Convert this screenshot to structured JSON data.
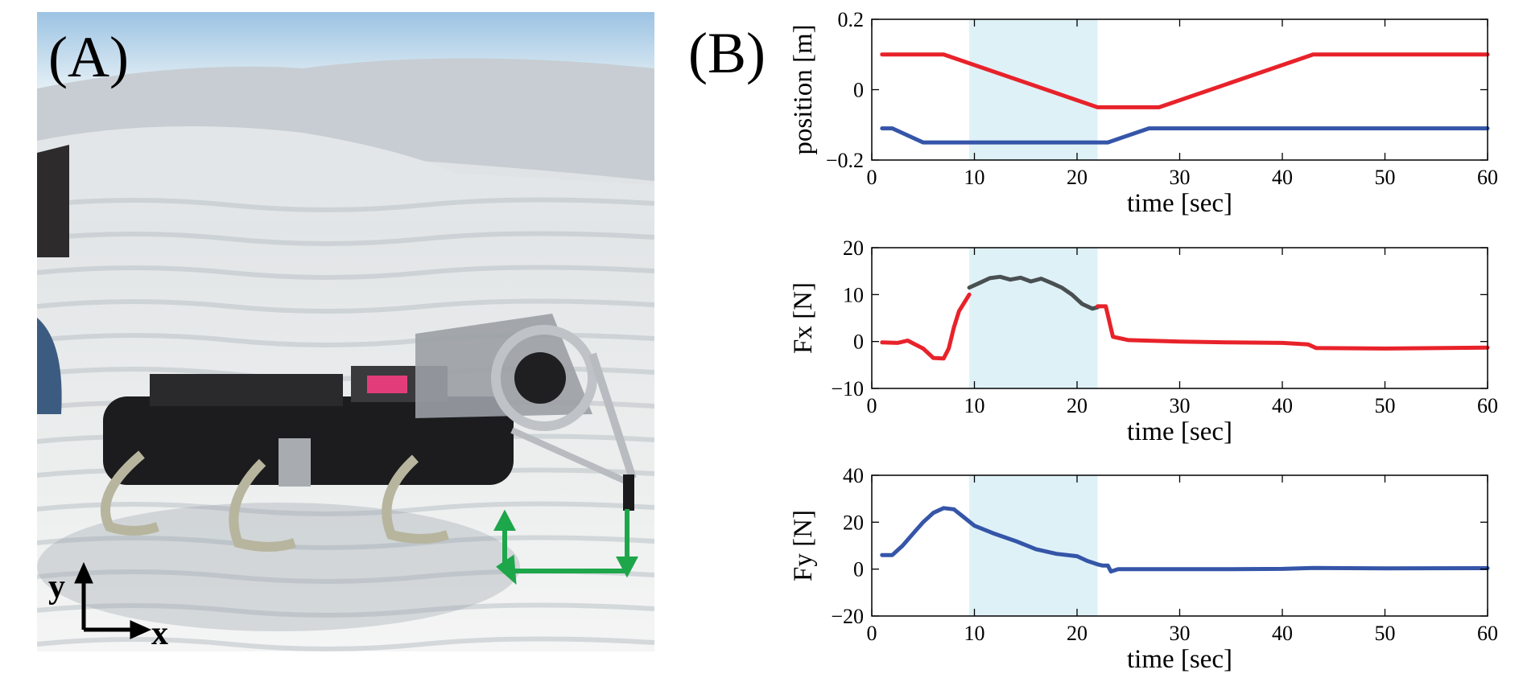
{
  "figure": {
    "panel_a_label": "(A)",
    "panel_b_label": "(B)",
    "photo_axis_x": "x",
    "photo_axis_y": "y"
  },
  "colors": {
    "red": "#e8222a",
    "blue": "#3555a8",
    "gray": "#4a4f52",
    "orange": "#d9603b",
    "shade": "#def1f7",
    "green_arrows": "#1ea64a"
  },
  "shaded_interval": [
    9.5,
    22
  ],
  "chart_data": [
    {
      "type": "line",
      "xlabel": "time [sec]",
      "ylabel": "position [m]",
      "xlim": [
        0,
        60
      ],
      "ylim": [
        -0.2,
        0.2
      ],
      "xticks": [
        "0",
        "10",
        "20",
        "30",
        "40",
        "50",
        "60"
      ],
      "yticks": [
        "−0.2",
        "0",
        "0.2"
      ],
      "series": [
        {
          "color": "red",
          "x": [
            1,
            7,
            22,
            28,
            43,
            60
          ],
          "y": [
            0.1,
            0.1,
            -0.05,
            -0.05,
            0.1,
            0.1
          ]
        },
        {
          "color": "blue",
          "x": [
            1,
            2,
            5,
            22,
            23,
            27,
            60
          ],
          "y": [
            -0.11,
            -0.11,
            -0.15,
            -0.15,
            -0.15,
            -0.11,
            -0.11
          ]
        }
      ]
    },
    {
      "type": "line",
      "xlabel": "time [sec]",
      "ylabel": "Fx [N]",
      "xlim": [
        0,
        60
      ],
      "ylim": [
        -10,
        20
      ],
      "xticks": [
        "0",
        "10",
        "20",
        "30",
        "40",
        "50",
        "60"
      ],
      "yticks": [
        "−10",
        "0",
        "10",
        "20"
      ],
      "series": [
        {
          "color": "red",
          "x": [
            1,
            2.5,
            3.5,
            5,
            6,
            7,
            7.5,
            8,
            8.5,
            9.5
          ],
          "y": [
            -0.2,
            -0.3,
            0.2,
            -1.5,
            -3.5,
            -3.6,
            -1.5,
            3,
            6.5,
            10
          ]
        },
        {
          "color": "gray",
          "x": [
            9.5,
            10.5,
            11.5,
            12.5,
            13.5,
            14.5,
            15.5,
            16.5,
            17.5,
            18.5,
            19.5,
            20.5,
            21.5,
            22
          ],
          "y": [
            11.5,
            12.5,
            13.5,
            13.8,
            13.2,
            13.6,
            12.8,
            13.4,
            12.5,
            11.5,
            10,
            8,
            7,
            7.3
          ]
        },
        {
          "color": "red",
          "x": [
            22,
            22.8,
            23.5,
            25,
            30,
            35,
            40,
            42.5,
            43.3,
            50,
            60
          ],
          "y": [
            7.5,
            7.5,
            1,
            0.3,
            0,
            -0.2,
            -0.3,
            -0.6,
            -1.4,
            -1.5,
            -1.3
          ]
        }
      ]
    },
    {
      "type": "line",
      "xlabel": "time [sec]",
      "ylabel": "Fy [N]",
      "xlim": [
        0,
        60
      ],
      "ylim": [
        -20,
        40
      ],
      "xticks": [
        "0",
        "10",
        "20",
        "30",
        "40",
        "50",
        "60"
      ],
      "yticks": [
        "−20",
        "0",
        "20",
        "40"
      ],
      "series": [
        {
          "color": "blue",
          "x": [
            1,
            2,
            3,
            4,
            5,
            6,
            7,
            8,
            9,
            10,
            12,
            14,
            16,
            18,
            20,
            21,
            22,
            22.5,
            23,
            23.3,
            24,
            28,
            35,
            40,
            43,
            50,
            60
          ],
          "y": [
            6,
            6,
            10,
            15,
            20,
            24,
            26,
            25.5,
            22,
            18.5,
            15,
            12,
            8.5,
            6.5,
            5.5,
            3.5,
            2,
            1.5,
            1.5,
            -1,
            0,
            0,
            0,
            0.1,
            0.5,
            0.3,
            0.4
          ]
        }
      ]
    }
  ]
}
